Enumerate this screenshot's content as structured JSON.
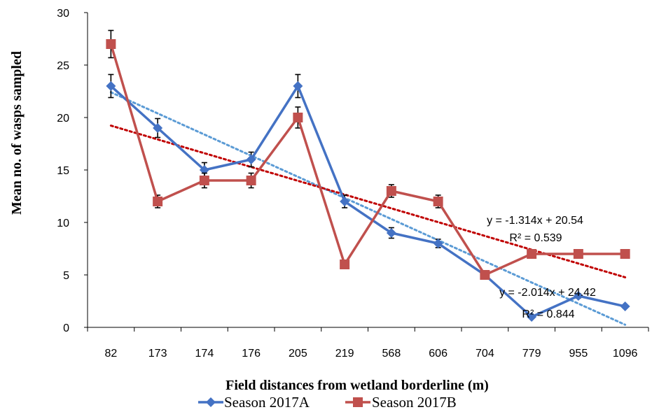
{
  "chart_data": {
    "type": "line",
    "xlabel": "Field distances from wetland borderline (m)",
    "ylabel": "Mean no. of wasps sampled",
    "categories": [
      "82",
      "173",
      "174",
      "176",
      "205",
      "219",
      "568",
      "606",
      "704",
      "779",
      "955",
      "1096"
    ],
    "ylim": [
      0,
      30
    ],
    "yticks": [
      0,
      5,
      10,
      15,
      20,
      25,
      30
    ],
    "grid": false,
    "legend_position": "bottom",
    "series": [
      {
        "name": "Season 2017A",
        "color": "#4472C4",
        "marker": "diamond",
        "values": [
          23,
          19,
          15,
          16,
          23,
          12,
          9,
          8,
          5,
          1,
          3,
          2
        ],
        "errors": [
          1.1,
          0.9,
          0.7,
          0.7,
          1.1,
          0.6,
          0.5,
          0.4,
          0.3,
          0.1,
          0.2,
          0.1
        ],
        "trendline": {
          "slope": -2.014,
          "intercept": 24.42,
          "color": "#5B9BD5",
          "equation": "y = -2.014x + 24.42",
          "r2": "R² = 0.844"
        }
      },
      {
        "name": "Season 2017B",
        "color": "#C0504D",
        "marker": "square",
        "values": [
          27,
          12,
          14,
          14,
          20,
          6,
          13,
          12,
          5,
          7,
          7,
          7
        ],
        "errors": [
          1.3,
          0.6,
          0.7,
          0.7,
          1.0,
          0.3,
          0.6,
          0.6,
          0.3,
          0.35,
          0.35,
          0.35
        ],
        "trendline": {
          "slope": -1.314,
          "intercept": 20.54,
          "color": "#C00000",
          "equation": "y = -1.314x + 20.54",
          "r2": "R² = 0.539"
        }
      }
    ]
  }
}
